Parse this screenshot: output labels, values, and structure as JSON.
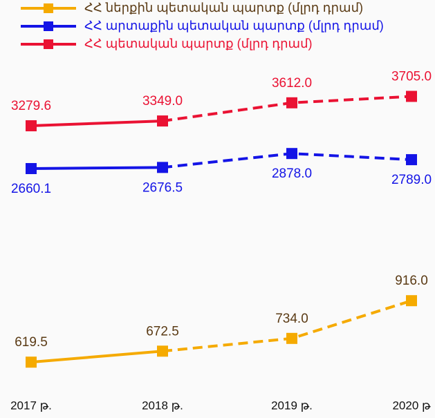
{
  "chart_data": {
    "type": "line",
    "categories": [
      "2017 թ.",
      "2018 թ.",
      "2019 թ.",
      "2020 թ"
    ],
    "series": [
      {
        "name": "ՀՀ ներքին պետական պարտք (մլրդ դրամ)",
        "color": "#f5aa00",
        "axis": "y2",
        "values": [
          619.5,
          672.5,
          734.0,
          916.0
        ],
        "value_labels": [
          "619.5",
          "672.5",
          "734.0",
          "916.0"
        ]
      },
      {
        "name": "ՀՀ արտաքին պետական պարտք (մլրդ դրամ)",
        "color": "#1414e6",
        "values": [
          2660.1,
          2676.5,
          2878.0,
          2789.0
        ],
        "value_labels": [
          "2660.1",
          "2676.5",
          "2878.0",
          "2789.0"
        ]
      },
      {
        "name": "ՀՀ պետական պարտք (մլրդ դրամ)",
        "color": "#ea1233",
        "values": [
          3279.6,
          3349.0,
          3612.0,
          3705.0
        ],
        "value_labels": [
          "3279.6",
          "3349.0",
          "3612.0",
          "3705.0"
        ]
      }
    ],
    "ylim": [
      2100,
      4100
    ],
    "y2lim": [
      400,
      1100
    ],
    "legend": "top-left"
  }
}
